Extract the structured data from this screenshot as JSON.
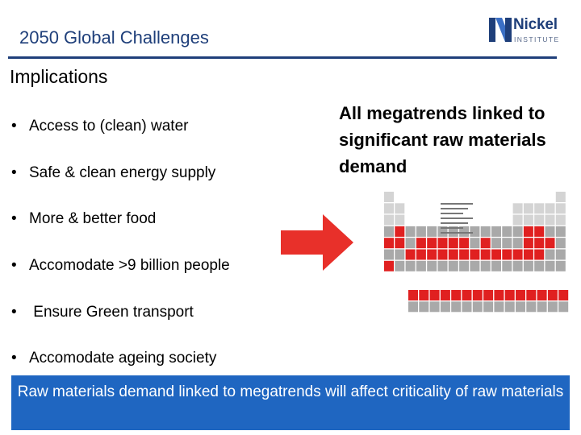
{
  "header": {
    "title": "2050 Global Challenges",
    "logo": {
      "word": "Nickel",
      "sub": "INSTITUTE",
      "icon": "nickel-logo-icon"
    }
  },
  "subtitle": "Implications",
  "bullets": [
    "Access to (clean) water",
    "Safe & clean energy supply",
    "More & better food",
    "Accomodate >9 billion people",
    " Ensure Green transport",
    "Accomodate ageing society"
  ],
  "bullet_marker": "•",
  "callout": "All megatrends linked to significant raw materials demand",
  "banner": "Raw materials demand linked to megatrends will affect criticality of raw materials",
  "colors": {
    "accent": "#1f3f7a",
    "banner": "#1f66c1",
    "arrow": "#e8302a",
    "highlight": "#e02020"
  }
}
